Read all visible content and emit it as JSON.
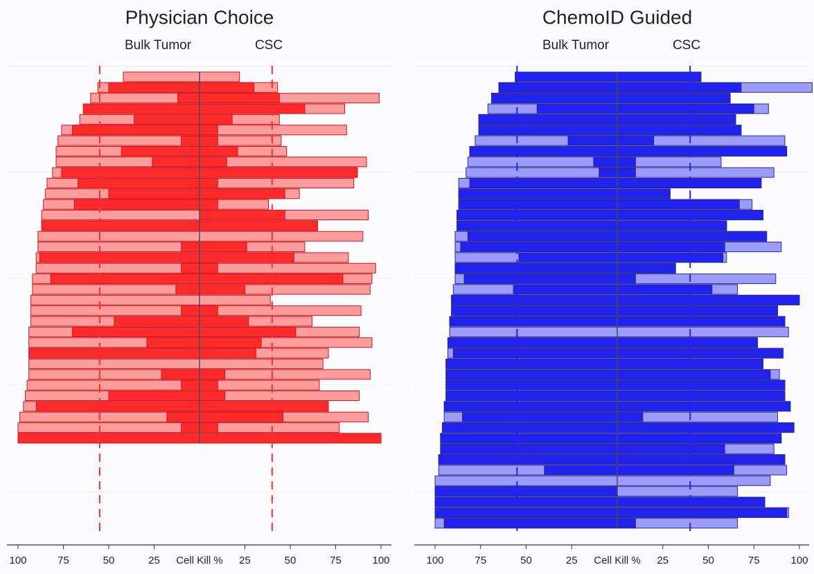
{
  "chart_data": [
    {
      "type": "butterfly-bar",
      "title": "Physician Choice",
      "left_label": "Bulk Tumor",
      "right_label": "CSC",
      "center_label": "Cell Kill %",
      "xlim": [
        0,
        100
      ],
      "xticks": [
        25,
        50,
        75,
        100
      ],
      "bulk_threshold": 55,
      "csc_threshold": 40,
      "light_color": "#ff9c9c",
      "dark_color": "#ff2b2b",
      "edge_color": "#c8141e",
      "bulk_light": [
        42,
        56,
        60,
        64,
        66,
        76,
        78,
        79,
        79,
        81,
        84,
        85,
        86,
        87,
        87,
        89,
        89,
        90,
        90,
        92,
        92,
        93,
        93,
        93,
        94,
        94,
        94,
        94,
        94,
        95,
        96,
        97,
        99,
        100,
        100
      ],
      "bulk_dark": [
        0,
        50,
        12,
        64,
        36,
        70,
        10,
        43,
        26,
        76,
        67,
        50,
        69,
        0,
        87,
        0,
        10,
        88,
        10,
        82,
        13,
        0,
        10,
        47,
        70,
        29,
        94,
        0,
        21,
        10,
        50,
        90,
        18,
        10,
        100
      ],
      "csc_light": [
        22,
        43,
        99,
        80,
        44,
        81,
        45,
        48,
        92,
        87,
        85,
        55,
        38,
        93,
        65,
        90,
        58,
        82,
        97,
        95,
        94,
        39,
        89,
        62,
        88,
        95,
        71,
        68,
        94,
        66,
        88,
        71,
        93,
        77,
        100
      ],
      "csc_dark": [
        0,
        30,
        44,
        58,
        18,
        10,
        10,
        21,
        15,
        87,
        10,
        47,
        10,
        47,
        65,
        0,
        26,
        52,
        10,
        79,
        25,
        0,
        10,
        27,
        53,
        34,
        31,
        0,
        14,
        10,
        14,
        71,
        46,
        10,
        100
      ]
    },
    {
      "type": "butterfly-bar",
      "title": "ChemoID Guided",
      "left_label": "Bulk Tumor",
      "right_label": "CSC",
      "center_label": "Cell Kill %",
      "xlim": [
        0,
        100
      ],
      "xticks": [
        25,
        50,
        75,
        100
      ],
      "bulk_threshold": 55,
      "csc_threshold": 40,
      "light_color": "#9c9cff",
      "dark_color": "#2222ee",
      "edge_color": "#2a2a88",
      "bulk_light": [
        56,
        65,
        69,
        71,
        76,
        76,
        78,
        81,
        82,
        83,
        87,
        87,
        87,
        88,
        88,
        89,
        89,
        89,
        89,
        89,
        90,
        91,
        91,
        92,
        92,
        93,
        93,
        94,
        94,
        94,
        94,
        95,
        95,
        96,
        97,
        97,
        98,
        98,
        100,
        100,
        100,
        100,
        100
      ],
      "bulk_dark": [
        56,
        65,
        69,
        44,
        76,
        76,
        27,
        81,
        13,
        10,
        81,
        87,
        87,
        88,
        88,
        82,
        86,
        54,
        89,
        84,
        57,
        91,
        91,
        92,
        0,
        93,
        90,
        94,
        94,
        94,
        94,
        95,
        85,
        96,
        97,
        97,
        98,
        40,
        0,
        100,
        100,
        100,
        95
      ],
      "csc_light": [
        46,
        107,
        62,
        83,
        65,
        68,
        92,
        93,
        57,
        86,
        79,
        29,
        74,
        80,
        60,
        82,
        90,
        60,
        32,
        87,
        66,
        100,
        88,
        92,
        94,
        77,
        91,
        80,
        89,
        92,
        92,
        95,
        88,
        97,
        90,
        86,
        92,
        93,
        84,
        66,
        81,
        94,
        66
      ],
      "csc_dark": [
        46,
        68,
        62,
        75,
        65,
        68,
        20,
        93,
        10,
        10,
        79,
        29,
        67,
        80,
        60,
        82,
        59,
        58,
        32,
        10,
        52,
        100,
        88,
        92,
        0,
        77,
        91,
        80,
        84,
        92,
        92,
        95,
        14,
        97,
        90,
        59,
        92,
        64,
        0,
        0,
        81,
        93,
        10
      ]
    }
  ]
}
